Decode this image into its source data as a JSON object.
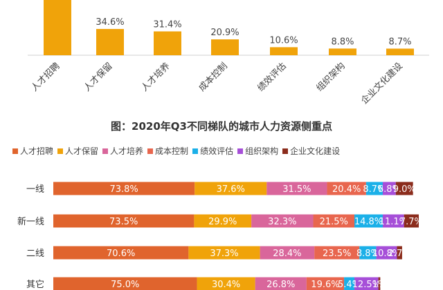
{
  "chart_data": [
    {
      "type": "bar",
      "categories": [
        "人才招聘",
        "人才保留",
        "人才培养",
        "成本控制",
        "绩效评估",
        "组织架构",
        "企业文化建设"
      ],
      "values": [
        null,
        34.6,
        31.4,
        20.9,
        10.6,
        8.8,
        8.7
      ],
      "value_labels": [
        "",
        "34.6%",
        "31.4%",
        "20.9%",
        "10.6%",
        "8.8%",
        "8.7%"
      ],
      "color": "#F0A30A",
      "xlabel": "",
      "ylabel": ""
    },
    {
      "type": "bar",
      "orientation": "horizontal",
      "stacked": true,
      "title": "图：2020年Q3不同梯队的城市人力资源侧重点",
      "categories": [
        "一线",
        "新一线",
        "二线",
        "其它"
      ],
      "legend_position": "top",
      "series": [
        {
          "name": "人才招聘",
          "color": "#E0642D",
          "values": [
            73.8,
            73.5,
            70.6,
            75.0
          ],
          "labels": [
            "73.8%",
            "73.5%",
            "70.6%",
            "75.0%"
          ]
        },
        {
          "name": "人才保留",
          "color": "#F0A30A",
          "values": [
            37.6,
            29.9,
            37.3,
            30.4
          ],
          "labels": [
            "37.6%",
            "29.9%",
            "37.3%",
            "30.4%"
          ]
        },
        {
          "name": "人才培养",
          "color": "#D9669B",
          "values": [
            31.5,
            32.3,
            28.4,
            26.8
          ],
          "labels": [
            "31.5%",
            "32.3%",
            "28.4%",
            "26.8%"
          ]
        },
        {
          "name": "成本控制",
          "color": "#E8664E",
          "values": [
            20.4,
            21.5,
            23.5,
            19.6
          ],
          "labels": [
            "20.4%",
            "21.5%",
            "23.5%",
            "19.6%"
          ]
        },
        {
          "name": "绩效评估",
          "color": "#1BB0E8",
          "values": [
            8.7,
            14.8,
            8.8,
            5.4
          ],
          "labels": [
            "8.7%",
            "14.8%",
            "8.8%",
            "5.4%"
          ]
        },
        {
          "name": "组织架构",
          "color": "#A64FD8",
          "values": [
            6.8,
            11.1,
            10.8,
            12.5
          ],
          "labels": [
            "6.8%",
            "11.1%",
            "10.8%",
            "12.5%"
          ]
        },
        {
          "name": "企业文化建设",
          "color": "#8B2C1C",
          "values": [
            9.0,
            7.7,
            2.7,
            1.0
          ],
          "labels": [
            "9.0%",
            "7.7%",
            "2.7%",
            "1%"
          ]
        }
      ]
    }
  ]
}
